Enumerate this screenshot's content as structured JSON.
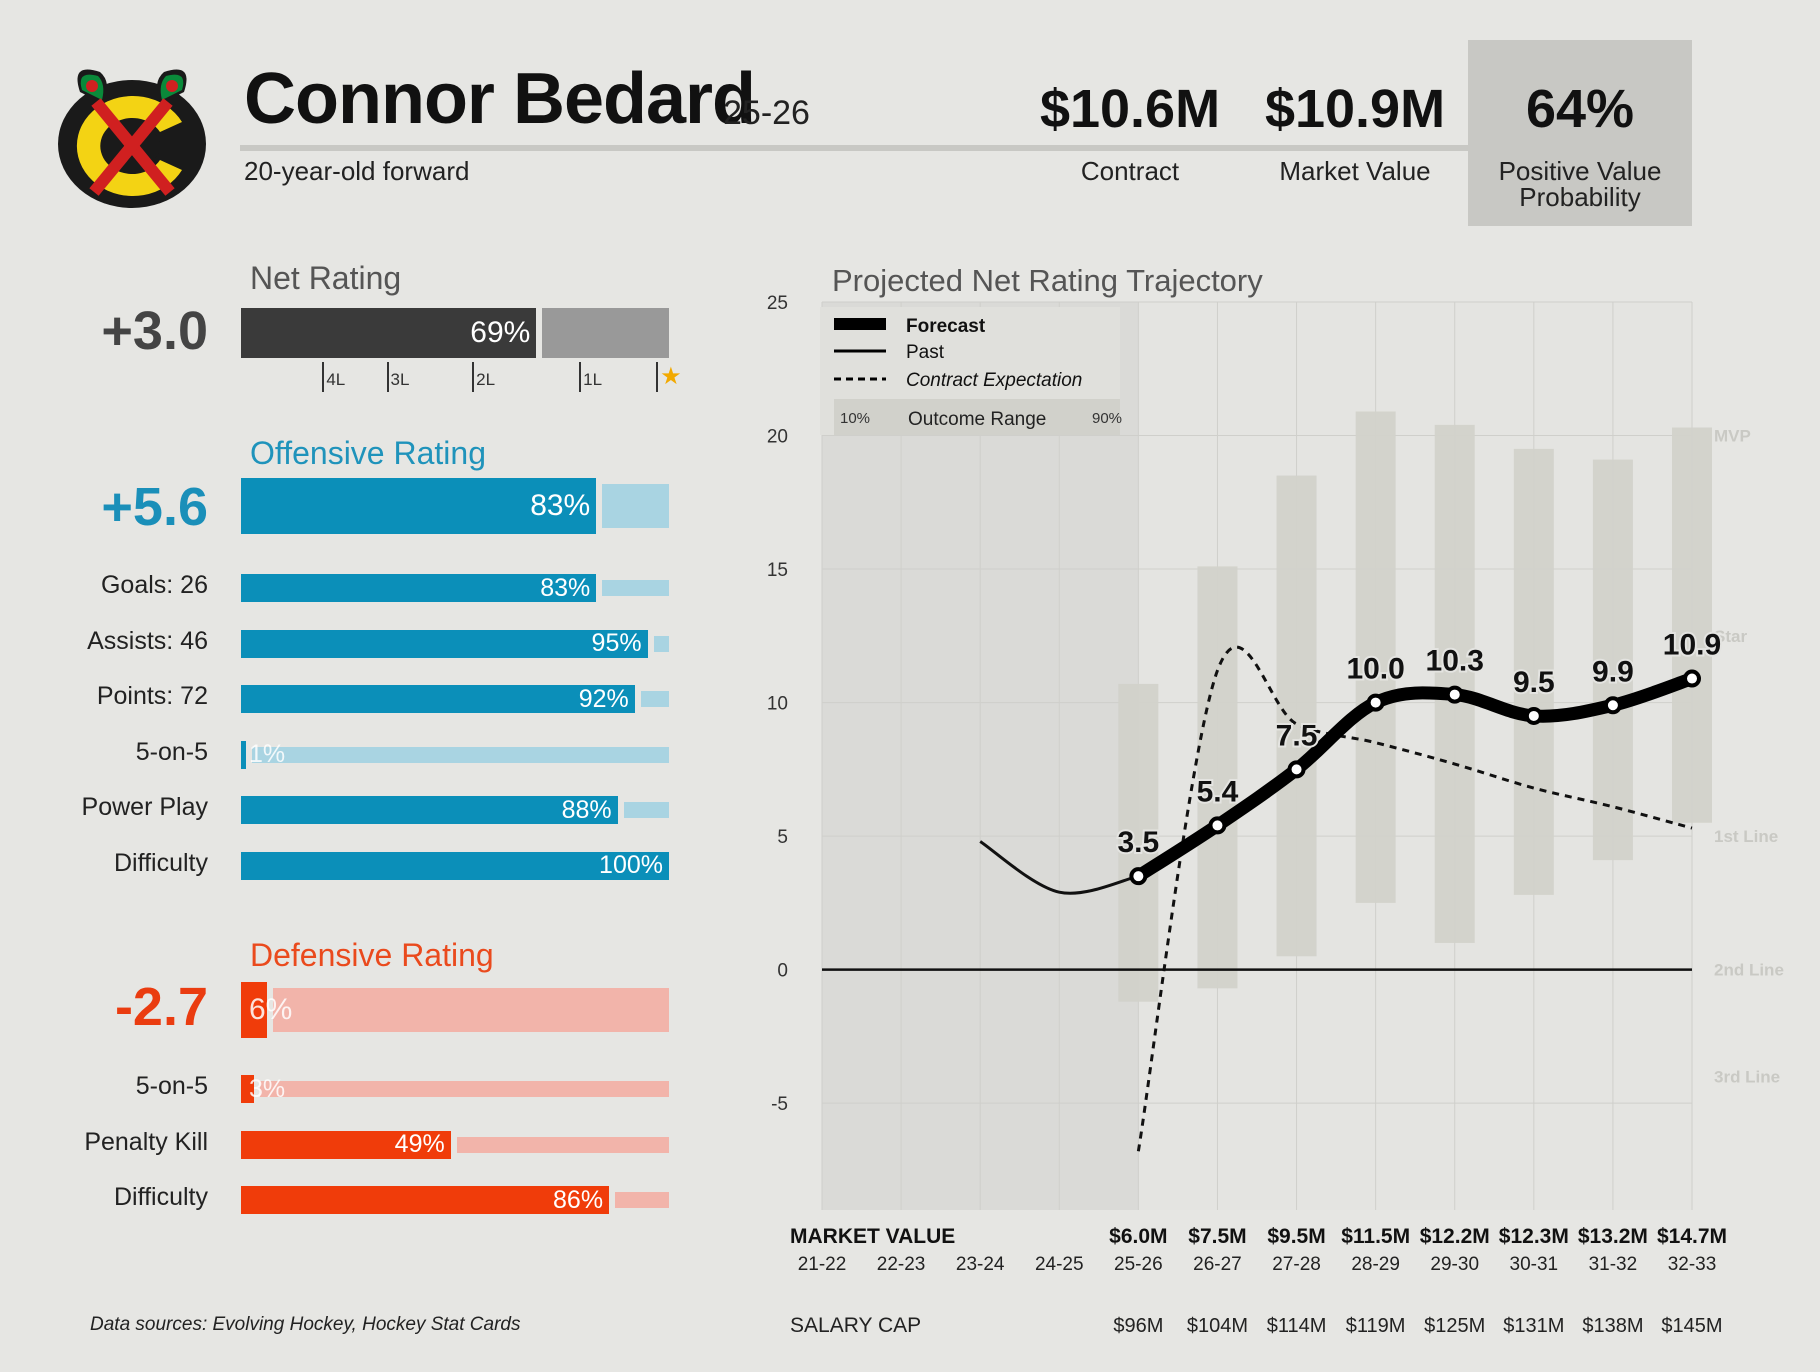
{
  "header": {
    "player_name": "Connor Bedard",
    "season": "25-26",
    "subtitle": "20-year-old forward",
    "logo_icon": "blackhawks-logo",
    "stats": [
      {
        "value": "$10.6M",
        "label": "Contract"
      },
      {
        "value": "$10.9M",
        "label": "Market Value"
      },
      {
        "value": "64%",
        "label_line1": "Positive Value",
        "label_line2": "Probability"
      }
    ]
  },
  "net_rating": {
    "title": "Net Rating",
    "value": "+3.0",
    "percent": 69,
    "percent_label": "69%",
    "tier_ticks": [
      {
        "label": "4L",
        "pct": 19
      },
      {
        "label": "3L",
        "pct": 34
      },
      {
        "label": "2L",
        "pct": 54
      },
      {
        "label": "1L",
        "pct": 79
      },
      {
        "label": "★",
        "pct": 97
      }
    ]
  },
  "offensive": {
    "title": "Offensive Rating",
    "value": "+5.6",
    "percent": 83,
    "percent_label": "83%",
    "rows": [
      {
        "label": "Goals: 26",
        "percent": 83,
        "percent_label": "83%"
      },
      {
        "label": "Assists: 46",
        "percent": 95,
        "percent_label": "95%"
      },
      {
        "label": "Points: 72",
        "percent": 92,
        "percent_label": "92%"
      },
      {
        "label": "5-on-5",
        "percent": 1,
        "percent_label": "1%"
      },
      {
        "label": "Power Play",
        "percent": 88,
        "percent_label": "88%"
      },
      {
        "label": "Difficulty",
        "percent": 100,
        "percent_label": "100%"
      }
    ]
  },
  "defensive": {
    "title": "Defensive Rating",
    "value": "-2.7",
    "percent": 6,
    "percent_label": "6%",
    "rows": [
      {
        "label": "5-on-5",
        "percent": 3,
        "percent_label": "3%"
      },
      {
        "label": "Penalty Kill",
        "percent": 49,
        "percent_label": "49%"
      },
      {
        "label": "Difficulty",
        "percent": 86,
        "percent_label": "86%"
      }
    ]
  },
  "colors": {
    "net_dark": "#3a3a3a",
    "net_light": "#999999",
    "off_dark": "#0b8fb9",
    "off_light": "#a9d4e2",
    "def_dark": "#f03c0a",
    "def_light": "#f2b4aa"
  },
  "chart_data": {
    "type": "line",
    "title": "Projected Net Rating Trajectory",
    "x": [
      "21-22",
      "22-23",
      "23-24",
      "24-25",
      "25-26",
      "26-27",
      "27-28",
      "28-29",
      "29-30",
      "30-31",
      "31-32",
      "32-33"
    ],
    "ylim": [
      -9,
      25
    ],
    "yticks": [
      -5,
      0,
      5,
      10,
      15,
      20,
      25
    ],
    "legend": {
      "forecast": "Forecast",
      "past": "Past",
      "contract": "Contract Expectation",
      "range_lo": "10%",
      "range_label": "Outcome Range",
      "range_hi": "90%",
      "placement": "top-left"
    },
    "series": [
      {
        "name": "Forecast",
        "x": [
          "25-26",
          "26-27",
          "27-28",
          "28-29",
          "29-30",
          "30-31",
          "31-32",
          "32-33"
        ],
        "values": [
          3.5,
          5.4,
          7.5,
          10.0,
          10.3,
          9.5,
          9.9,
          10.9
        ],
        "labels": [
          "3.5",
          "5.4",
          "7.5",
          "10.0",
          "10.3",
          "9.5",
          "9.9",
          "10.9"
        ]
      },
      {
        "name": "Past",
        "x": [
          "23-24",
          "24-25",
          "25-26"
        ],
        "values": [
          4.8,
          2.9,
          3.5
        ]
      },
      {
        "name": "Contract Expectation",
        "x": [
          "25-26",
          "26-27",
          "27-28",
          "28-29",
          "29-30",
          "30-31",
          "31-32",
          "32-33"
        ],
        "values": [
          -6.8,
          11.2,
          9.2,
          8.5,
          7.7,
          6.8,
          6.1,
          5.3
        ]
      }
    ],
    "outcome_range": [
      {
        "x": "25-26",
        "lo": -1.2,
        "hi": 10.7
      },
      {
        "x": "26-27",
        "lo": -0.7,
        "hi": 15.1
      },
      {
        "x": "27-28",
        "lo": 0.5,
        "hi": 18.5
      },
      {
        "x": "28-29",
        "lo": 2.5,
        "hi": 20.9
      },
      {
        "x": "29-30",
        "lo": 1.0,
        "hi": 20.4
      },
      {
        "x": "30-31",
        "lo": 2.8,
        "hi": 19.5
      },
      {
        "x": "31-32",
        "lo": 4.1,
        "hi": 19.1
      },
      {
        "x": "32-33",
        "lo": 5.5,
        "hi": 20.3
      }
    ],
    "tier_labels": [
      {
        "label": "MVP",
        "y": 20
      },
      {
        "label": "Star",
        "y": 12.5
      },
      {
        "label": "1st Line",
        "y": 5
      },
      {
        "label": "2nd Line",
        "y": 0
      },
      {
        "label": "3rd Line",
        "y": -4
      }
    ],
    "market_value_label": "MARKET VALUE",
    "market_values": [
      "",
      "",
      "",
      "",
      "$6.0M",
      "$7.5M",
      "$9.5M",
      "$11.5M",
      "$12.2M",
      "$12.3M",
      "$13.2M",
      "$14.7M"
    ],
    "salary_cap_label": "SALARY CAP",
    "salary_caps": [
      "",
      "",
      "",
      "",
      "$96M",
      "$104M",
      "$114M",
      "$119M",
      "$125M",
      "$131M",
      "$138M",
      "$145M"
    ]
  },
  "footer": {
    "source": "Data sources: Evolving Hockey, Hockey Stat Cards"
  }
}
